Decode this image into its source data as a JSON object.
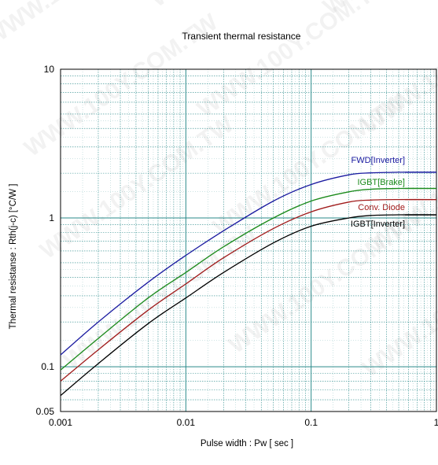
{
  "watermark": "WWW.100Y.COM.TW",
  "chart_data": {
    "type": "line",
    "title": "Transient thermal resistance",
    "xlabel": "Pulse width  :  Pw  [ sec ]",
    "ylabel": "Thermal resistanse  :  Rth(j-c)  [°C/W ]",
    "x_scale": "log",
    "y_scale": "log",
    "xlim": [
      0.001,
      1
    ],
    "ylim": [
      0.05,
      10
    ],
    "x_ticks": [
      {
        "value": 0.001,
        "label": "0.001"
      },
      {
        "value": 0.01,
        "label": "0.01"
      },
      {
        "value": 0.1,
        "label": "0.1"
      },
      {
        "value": 1,
        "label": "1"
      }
    ],
    "y_ticks": [
      {
        "value": 0.05,
        "label": "0.05"
      },
      {
        "value": 0.1,
        "label": "0.1"
      },
      {
        "value": 1,
        "label": "1"
      },
      {
        "value": 10,
        "label": "10"
      }
    ],
    "grid": true,
    "legend": "inline-labels",
    "series": [
      {
        "name": "FWD[Inverter]",
        "color": "#1a1aa0",
        "x": [
          0.001,
          0.002,
          0.005,
          0.01,
          0.02,
          0.05,
          0.1,
          0.2,
          0.3,
          0.5,
          1
        ],
        "y": [
          0.12,
          0.2,
          0.37,
          0.56,
          0.82,
          1.3,
          1.68,
          1.95,
          2.01,
          2.03,
          2.03
        ]
      },
      {
        "name": "IGBT[Brake]",
        "color": "#1a8a1a",
        "x": [
          0.001,
          0.002,
          0.005,
          0.01,
          0.02,
          0.05,
          0.1,
          0.2,
          0.3,
          0.5,
          1
        ],
        "y": [
          0.095,
          0.155,
          0.29,
          0.43,
          0.64,
          1.0,
          1.3,
          1.5,
          1.56,
          1.58,
          1.58
        ]
      },
      {
        "name": "Conv. Diode",
        "color": "#a01a1a",
        "x": [
          0.001,
          0.002,
          0.005,
          0.01,
          0.02,
          0.05,
          0.1,
          0.2,
          0.3,
          0.5,
          1
        ],
        "y": [
          0.08,
          0.13,
          0.24,
          0.36,
          0.54,
          0.85,
          1.1,
          1.28,
          1.32,
          1.33,
          1.33
        ]
      },
      {
        "name": "IGBT[Inverter]",
        "color": "#000000",
        "x": [
          0.001,
          0.002,
          0.005,
          0.01,
          0.02,
          0.05,
          0.1,
          0.2,
          0.3,
          0.5,
          1
        ],
        "y": [
          0.064,
          0.105,
          0.195,
          0.29,
          0.43,
          0.68,
          0.88,
          1.0,
          1.04,
          1.05,
          1.05
        ]
      }
    ]
  }
}
